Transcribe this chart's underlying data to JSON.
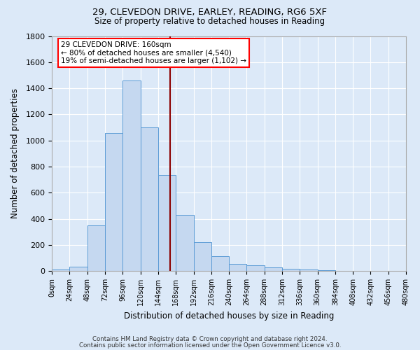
{
  "title1": "29, CLEVEDON DRIVE, EARLEY, READING, RG6 5XF",
  "title2": "Size of property relative to detached houses in Reading",
  "xlabel": "Distribution of detached houses by size in Reading",
  "ylabel": "Number of detached properties",
  "footer1": "Contains HM Land Registry data © Crown copyright and database right 2024.",
  "footer2": "Contains public sector information licensed under the Open Government Licence v3.0.",
  "bin_edges": [
    0,
    24,
    48,
    72,
    96,
    120,
    144,
    168,
    192,
    216,
    240,
    264,
    288,
    312,
    336,
    360,
    384,
    408,
    432,
    456,
    480
  ],
  "bar_heights": [
    10,
    35,
    350,
    1060,
    1460,
    1100,
    735,
    430,
    220,
    115,
    55,
    45,
    30,
    15,
    10,
    5,
    3,
    2,
    1,
    1
  ],
  "bar_color": "#c5d8f0",
  "bar_edge_color": "#5b9bd5",
  "property_size": 160,
  "annotation_title": "29 CLEVEDON DRIVE: 160sqm",
  "annotation_line1": "← 80% of detached houses are smaller (4,540)",
  "annotation_line2": "19% of semi-detached houses are larger (1,102) →",
  "vline_color": "#8b0000",
  "background_color": "#dce9f8",
  "fig_background_color": "#dce9f8",
  "grid_color": "#ffffff",
  "ylim": [
    0,
    1800
  ],
  "xlim": [
    0,
    480
  ]
}
